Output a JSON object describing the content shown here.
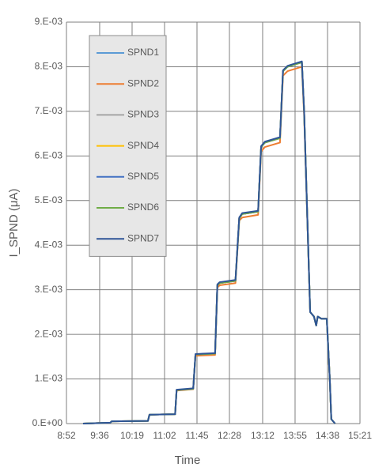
{
  "chart_data": {
    "type": "line",
    "x_label": "Time",
    "y_label": "I_SPND (μA)",
    "x": [
      "9:14",
      "9:50",
      "9:52",
      "10:40",
      "10:42",
      "11:16",
      "11:18",
      "11:40",
      "11:43",
      "12:09",
      "12:12",
      "12:15",
      "12:36",
      "12:41",
      "12:45",
      "13:06",
      "13:10",
      "13:15",
      "13:35",
      "13:39",
      "13:45",
      "14:04",
      "14:07",
      "14:15",
      "14:20",
      "14:23",
      "14:25",
      "14:30",
      "14:37",
      "14:41",
      "14:43",
      "14:48"
    ],
    "series": [
      {
        "name": "SPND1",
        "color": "#5b9bd5",
        "values": [
          0,
          2e-05,
          5e-05,
          6e-05,
          0.0002,
          0.00021,
          0.00075,
          0.00078,
          0.00155,
          0.00157,
          0.0031,
          0.00315,
          0.0032,
          0.0046,
          0.0047,
          0.00475,
          0.0062,
          0.0063,
          0.0064,
          0.0079,
          0.008,
          0.0081,
          0.007,
          0.0025,
          0.0024,
          0.0022,
          0.0024,
          0.00235,
          0.00235,
          0.001,
          0.0001,
          0
        ]
      },
      {
        "name": "SPND2",
        "color": "#ed7d31",
        "values": [
          0,
          2e-05,
          5e-05,
          6e-05,
          0.0002,
          0.00021,
          0.00074,
          0.00077,
          0.00152,
          0.00154,
          0.00305,
          0.0031,
          0.00315,
          0.00455,
          0.00462,
          0.00468,
          0.0061,
          0.0062,
          0.0063,
          0.0078,
          0.0079,
          0.008,
          0.0069,
          0.0025,
          0.0024,
          0.0022,
          0.0024,
          0.00235,
          0.00235,
          0.001,
          0.0001,
          0
        ]
      },
      {
        "name": "SPND3",
        "color": "#a5a5a5",
        "values": [
          0,
          2e-05,
          5e-05,
          6e-05,
          0.0002,
          0.00021,
          0.00075,
          0.00078,
          0.00155,
          0.00157,
          0.0031,
          0.00315,
          0.0032,
          0.0046,
          0.0047,
          0.00475,
          0.0062,
          0.0063,
          0.0064,
          0.0079,
          0.008,
          0.0081,
          0.007,
          0.0025,
          0.0024,
          0.0022,
          0.0024,
          0.00235,
          0.00235,
          0.001,
          0.0001,
          0
        ]
      },
      {
        "name": "SPND4",
        "color": "#ffc000",
        "values": [
          0,
          2e-05,
          5e-05,
          6e-05,
          0.0002,
          0.00021,
          0.00075,
          0.00078,
          0.00155,
          0.00157,
          0.0031,
          0.00315,
          0.0032,
          0.0046,
          0.0047,
          0.00475,
          0.0062,
          0.0063,
          0.0064,
          0.0079,
          0.008,
          0.0081,
          0.007,
          0.0025,
          0.0024,
          0.0022,
          0.0024,
          0.00235,
          0.00235,
          0.001,
          0.0001,
          0
        ]
      },
      {
        "name": "SPND5",
        "color": "#4472c4",
        "values": [
          0,
          2e-05,
          5e-05,
          6e-05,
          0.0002,
          0.00021,
          0.00075,
          0.00078,
          0.00155,
          0.00157,
          0.0031,
          0.00315,
          0.0032,
          0.0046,
          0.0047,
          0.00475,
          0.0062,
          0.0063,
          0.0064,
          0.0079,
          0.008,
          0.0081,
          0.007,
          0.0025,
          0.0024,
          0.0022,
          0.0024,
          0.00235,
          0.00235,
          0.001,
          0.0001,
          0
        ]
      },
      {
        "name": "SPND6",
        "color": "#70ad47",
        "values": [
          0,
          2e-05,
          5e-05,
          6e-05,
          0.0002,
          0.00021,
          0.00075,
          0.00078,
          0.00155,
          0.00157,
          0.0031,
          0.00315,
          0.0032,
          0.0046,
          0.0047,
          0.00475,
          0.0062,
          0.0063,
          0.0064,
          0.0079,
          0.008,
          0.0081,
          0.007,
          0.0025,
          0.0024,
          0.0022,
          0.0024,
          0.00235,
          0.00235,
          0.001,
          0.0001,
          0
        ]
      },
      {
        "name": "SPND7",
        "color": "#2f5597",
        "values": [
          0,
          2e-05,
          5e-05,
          6e-05,
          0.0002,
          0.00021,
          0.00076,
          0.00079,
          0.00156,
          0.00158,
          0.00312,
          0.00317,
          0.00322,
          0.00462,
          0.00472,
          0.00477,
          0.00622,
          0.00632,
          0.00642,
          0.00792,
          0.00802,
          0.00812,
          0.007,
          0.0025,
          0.0024,
          0.0022,
          0.0024,
          0.00235,
          0.00235,
          0.001,
          0.0001,
          0
        ]
      }
    ],
    "xlim": [
      "8:52",
      "15:21"
    ],
    "xticks": [
      "8:52",
      "9:36",
      "10:19",
      "11:02",
      "11:45",
      "12:28",
      "13:12",
      "13:55",
      "14:38",
      "15:21"
    ],
    "ylim": [
      0,
      0.009
    ],
    "yticks": [
      {
        "value": 0,
        "label": "0.E+00"
      },
      {
        "value": 0.001,
        "label": "1.E-03"
      },
      {
        "value": 0.002,
        "label": "2.E-03"
      },
      {
        "value": 0.003,
        "label": "3.E-03"
      },
      {
        "value": 0.004,
        "label": "4.E-03"
      },
      {
        "value": 0.005,
        "label": "5.E-03"
      },
      {
        "value": 0.006,
        "label": "6.E-03"
      },
      {
        "value": 0.007,
        "label": "7.E-03"
      },
      {
        "value": 0.008,
        "label": "8.E-03"
      },
      {
        "value": 0.009,
        "label": "9.E-03"
      }
    ],
    "grid": true,
    "legend": "upper left"
  }
}
